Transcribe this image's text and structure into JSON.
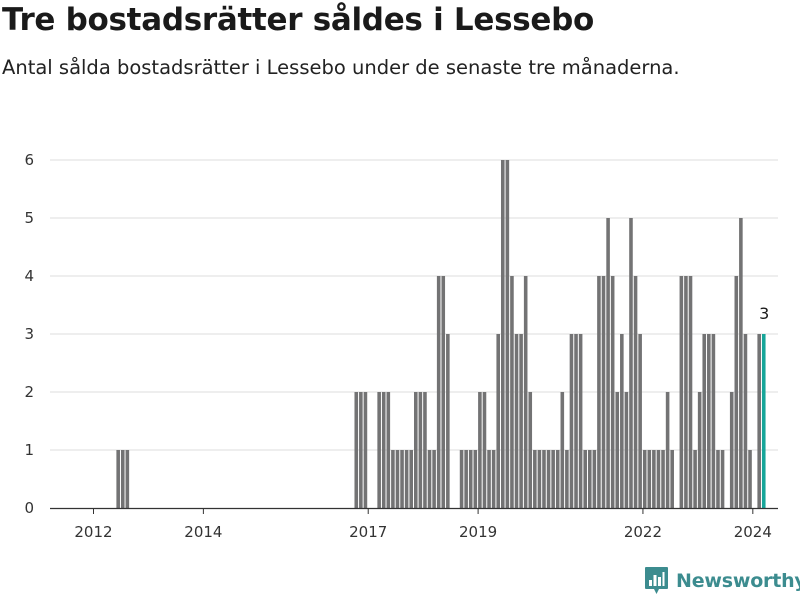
{
  "title": "Tre bostadsrätter såldes i Lessebo",
  "subtitle": "Antal sålda bostadsrätter i Lessebo under de senaste tre månaderna.",
  "brand": {
    "name": "Newsworthy"
  },
  "colors": {
    "bar": "#737374",
    "highlight": "#16a599",
    "grid": "#dcdcdc",
    "axis": "#333333",
    "brand": "#3c8c8f"
  },
  "chart_data": {
    "type": "bar",
    "title": "Tre bostadsrätter såldes i Lessebo",
    "subtitle": "Antal sålda bostadsrätter i Lessebo under de senaste tre månaderna.",
    "x_unit": "month",
    "ylim": [
      0,
      6
    ],
    "yticks": [
      0,
      1,
      2,
      3,
      4,
      5,
      6
    ],
    "xticks": [
      2012,
      2014,
      2017,
      2019,
      2022,
      2024
    ],
    "grid": true,
    "legend": "none",
    "highlight": {
      "date": "2024-03",
      "label": "3"
    },
    "series": [
      {
        "values": [
          {
            "date": "2012-06",
            "y": 1
          },
          {
            "date": "2012-07",
            "y": 1
          },
          {
            "date": "2012-08",
            "y": 1
          },
          {
            "date": "2016-10",
            "y": 2
          },
          {
            "date": "2016-11",
            "y": 2
          },
          {
            "date": "2016-12",
            "y": 2
          },
          {
            "date": "2017-03",
            "y": 2
          },
          {
            "date": "2017-04",
            "y": 2
          },
          {
            "date": "2017-05",
            "y": 2
          },
          {
            "date": "2017-06",
            "y": 1
          },
          {
            "date": "2017-07",
            "y": 1
          },
          {
            "date": "2017-08",
            "y": 1
          },
          {
            "date": "2017-09",
            "y": 1
          },
          {
            "date": "2017-10",
            "y": 1
          },
          {
            "date": "2017-11",
            "y": 2
          },
          {
            "date": "2017-12",
            "y": 2
          },
          {
            "date": "2018-01",
            "y": 2
          },
          {
            "date": "2018-02",
            "y": 1
          },
          {
            "date": "2018-03",
            "y": 1
          },
          {
            "date": "2018-04",
            "y": 4
          },
          {
            "date": "2018-05",
            "y": 4
          },
          {
            "date": "2018-06",
            "y": 3
          },
          {
            "date": "2018-09",
            "y": 1
          },
          {
            "date": "2018-10",
            "y": 1
          },
          {
            "date": "2018-11",
            "y": 1
          },
          {
            "date": "2018-12",
            "y": 1
          },
          {
            "date": "2019-01",
            "y": 2
          },
          {
            "date": "2019-02",
            "y": 2
          },
          {
            "date": "2019-03",
            "y": 1
          },
          {
            "date": "2019-04",
            "y": 1
          },
          {
            "date": "2019-05",
            "y": 3
          },
          {
            "date": "2019-06",
            "y": 6
          },
          {
            "date": "2019-07",
            "y": 6
          },
          {
            "date": "2019-08",
            "y": 4
          },
          {
            "date": "2019-09",
            "y": 3
          },
          {
            "date": "2019-10",
            "y": 3
          },
          {
            "date": "2019-11",
            "y": 4
          },
          {
            "date": "2019-12",
            "y": 2
          },
          {
            "date": "2020-01",
            "y": 1
          },
          {
            "date": "2020-02",
            "y": 1
          },
          {
            "date": "2020-03",
            "y": 1
          },
          {
            "date": "2020-04",
            "y": 1
          },
          {
            "date": "2020-05",
            "y": 1
          },
          {
            "date": "2020-06",
            "y": 1
          },
          {
            "date": "2020-07",
            "y": 2
          },
          {
            "date": "2020-08",
            "y": 1
          },
          {
            "date": "2020-09",
            "y": 3
          },
          {
            "date": "2020-10",
            "y": 3
          },
          {
            "date": "2020-11",
            "y": 3
          },
          {
            "date": "2020-12",
            "y": 1
          },
          {
            "date": "2021-01",
            "y": 1
          },
          {
            "date": "2021-02",
            "y": 1
          },
          {
            "date": "2021-03",
            "y": 4
          },
          {
            "date": "2021-04",
            "y": 4
          },
          {
            "date": "2021-05",
            "y": 5
          },
          {
            "date": "2021-06",
            "y": 4
          },
          {
            "date": "2021-07",
            "y": 2
          },
          {
            "date": "2021-08",
            "y": 3
          },
          {
            "date": "2021-09",
            "y": 2
          },
          {
            "date": "2021-10",
            "y": 5
          },
          {
            "date": "2021-11",
            "y": 4
          },
          {
            "date": "2021-12",
            "y": 3
          },
          {
            "date": "2022-01",
            "y": 1
          },
          {
            "date": "2022-02",
            "y": 1
          },
          {
            "date": "2022-03",
            "y": 1
          },
          {
            "date": "2022-04",
            "y": 1
          },
          {
            "date": "2022-05",
            "y": 1
          },
          {
            "date": "2022-06",
            "y": 2
          },
          {
            "date": "2022-07",
            "y": 1
          },
          {
            "date": "2022-09",
            "y": 4
          },
          {
            "date": "2022-10",
            "y": 4
          },
          {
            "date": "2022-11",
            "y": 4
          },
          {
            "date": "2022-12",
            "y": 1
          },
          {
            "date": "2023-01",
            "y": 2
          },
          {
            "date": "2023-02",
            "y": 3
          },
          {
            "date": "2023-03",
            "y": 3
          },
          {
            "date": "2023-04",
            "y": 3
          },
          {
            "date": "2023-05",
            "y": 1
          },
          {
            "date": "2023-06",
            "y": 1
          },
          {
            "date": "2023-08",
            "y": 2
          },
          {
            "date": "2023-09",
            "y": 4
          },
          {
            "date": "2023-10",
            "y": 5
          },
          {
            "date": "2023-11",
            "y": 3
          },
          {
            "date": "2023-12",
            "y": 1
          },
          {
            "date": "2024-02",
            "y": 3
          },
          {
            "date": "2024-03",
            "y": 3
          }
        ]
      }
    ]
  }
}
